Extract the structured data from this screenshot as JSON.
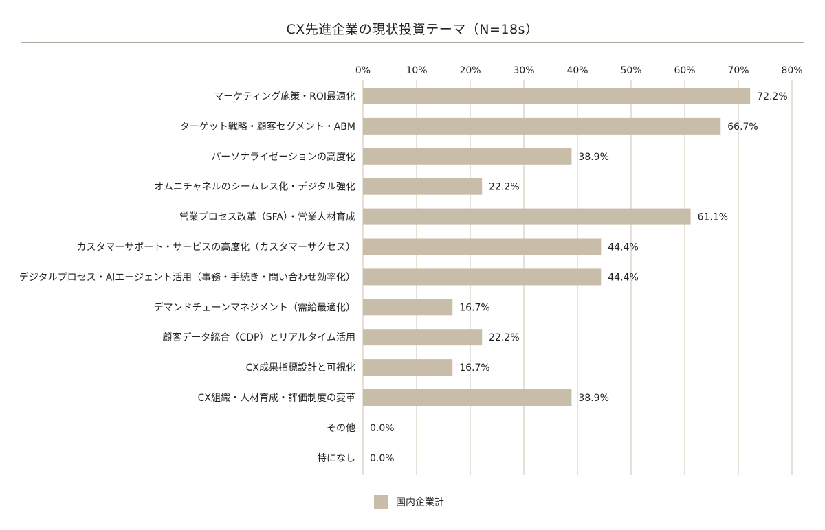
{
  "chart_data": {
    "type": "bar",
    "orientation": "horizontal",
    "title": "CX先進企業の現状投資テーマ（N=18s）",
    "categories": [
      "マーケティング施策・ROI最適化",
      "ターゲット戦略・顧客セグメント・ABM",
      "パーソナライゼーションの高度化",
      "オムニチャネルのシームレス化・デジタル強化",
      "営業プロセス改革（SFA）・営業人材育成",
      "カスタマーサポート・サービスの高度化（カスタマーサクセス）",
      "デジタルプロセス・AIエージェント活用（事務・手続き・問い合わせ効率化）",
      "デマンドチェーンマネジメント（需給最適化）",
      "顧客データ統合（CDP）とリアルタイム活用",
      "CX成果指標設計と可視化",
      "CX組織・人材育成・評価制度の変革",
      "その他",
      "特になし"
    ],
    "series": [
      {
        "name": "国内企業計",
        "values": [
          72.2,
          66.7,
          38.9,
          22.2,
          61.1,
          44.4,
          44.4,
          16.7,
          22.2,
          16.7,
          38.9,
          0.0,
          0.0
        ],
        "value_labels": [
          "72.2%",
          "66.7%",
          "38.9%",
          "22.2%",
          "61.1%",
          "44.4%",
          "44.4%",
          "16.7%",
          "22.2%",
          "16.7%",
          "38.9%",
          "0.0%",
          "0.0%"
        ]
      }
    ],
    "xlim": [
      0,
      80
    ],
    "ticks": [
      0,
      10,
      20,
      30,
      40,
      50,
      60,
      70,
      80
    ],
    "tick_labels": [
      "0%",
      "10%",
      "20%",
      "30%",
      "40%",
      "50%",
      "60%",
      "70%",
      "80%"
    ],
    "x_axis_position": "top",
    "grid": true,
    "legend_position": "bottom-center",
    "bar_color": "#c8bda9",
    "grid_color": "#ddd5c9",
    "title_rule_color": "#b1a89c"
  }
}
